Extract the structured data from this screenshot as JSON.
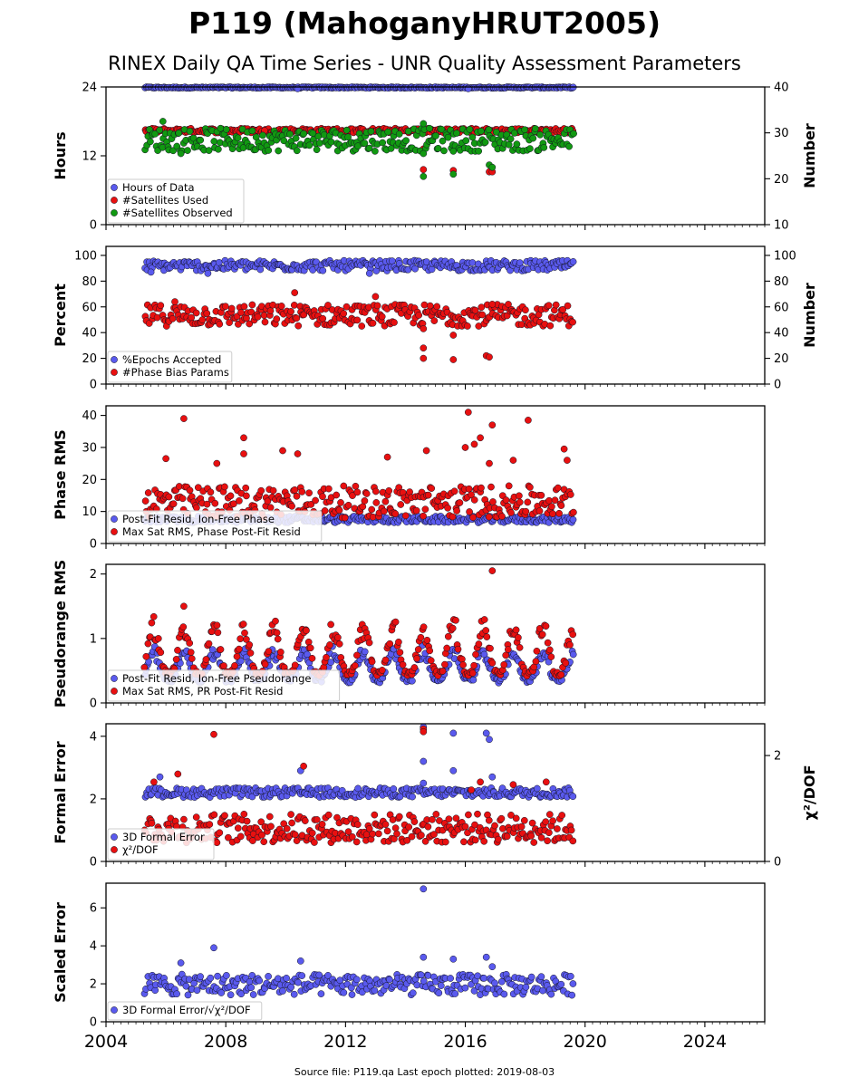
{
  "title": "P119 (MahoganyHRUT2005)",
  "subtitle": "RINEX Daily QA Time Series - UNR Quality Assessment Parameters",
  "footer": "Source file: P119.qa Last epoch plotted: 2019-08-03",
  "colors": {
    "blue": "#5a5aee",
    "red": "#e81010",
    "green": "#119911",
    "edge": "#111122"
  },
  "x_axis": {
    "range": [
      2004,
      2026
    ],
    "ticks": [
      2004,
      2008,
      2012,
      2016,
      2020,
      2024
    ],
    "tick_labels": [
      "2004",
      "2008",
      "2012",
      "2016",
      "2020",
      "2024"
    ]
  },
  "chart_data": [
    {
      "type": "scatter",
      "ylabel": "Hours",
      "ylabel2": "Number",
      "ylim": [
        0,
        24
      ],
      "yticks": [
        0,
        12,
        24
      ],
      "ylim2": [
        10,
        40
      ],
      "yticks2": [
        10,
        20,
        30,
        40
      ],
      "legend_position": "lower-left",
      "series": [
        {
          "name": "Hours of Data",
          "color": "blue",
          "axis": "left",
          "x_range": [
            2005.3,
            2019.6
          ],
          "band": [
            23.8,
            24.0
          ],
          "outliers": [
            [
              2010.4,
              23.7
            ],
            [
              2016.1,
              23.7
            ]
          ]
        },
        {
          "name": "#Satellites Used",
          "color": "red",
          "axis": "right",
          "x_range": [
            2005.3,
            2019.6
          ],
          "band": [
            30,
            31
          ],
          "outliers": [
            [
              2014.6,
              26.5
            ],
            [
              2014.6,
              22.0
            ],
            [
              2015.6,
              21.8
            ],
            [
              2016.8,
              21.5
            ],
            [
              2016.9,
              21.5
            ],
            [
              2009.3,
              30.5
            ]
          ]
        },
        {
          "name": "#Satellites Observed",
          "color": "green",
          "axis": "right",
          "x_range": [
            2005.3,
            2019.6
          ],
          "band": [
            26,
            31
          ],
          "outliers": [
            [
              2005.9,
              32.5
            ],
            [
              2006.5,
              25.5
            ],
            [
              2014.6,
              25.5
            ],
            [
              2014.6,
              20.5
            ],
            [
              2015.6,
              21.0
            ],
            [
              2016.8,
              23.0
            ],
            [
              2016.9,
              22.5
            ],
            [
              2014.6,
              32.0
            ],
            [
              2015.6,
              26.0
            ]
          ]
        }
      ]
    },
    {
      "type": "scatter",
      "ylabel": "Percent",
      "ylabel2": "Number",
      "ylim": [
        0,
        107
      ],
      "yticks": [
        0,
        20,
        40,
        60,
        80,
        100
      ],
      "ylim2": [
        0,
        107
      ],
      "yticks2": [
        0,
        20,
        40,
        60,
        80,
        100
      ],
      "legend_position": "lower-left",
      "series": [
        {
          "name": "%Epochs Accepted",
          "color": "blue",
          "axis": "left",
          "x_range": [
            2005.3,
            2019.6
          ],
          "band": [
            88,
            96
          ],
          "outliers": [
            [
              2005.5,
              87
            ],
            [
              2007.4,
              86
            ],
            [
              2012.8,
              86
            ]
          ]
        },
        {
          "name": "#Phase Bias Params",
          "color": "red",
          "axis": "right",
          "x_range": [
            2005.3,
            2019.6
          ],
          "band": [
            45,
            62
          ],
          "outliers": [
            [
              2006.3,
              64
            ],
            [
              2010.3,
              71
            ],
            [
              2013.0,
              68
            ],
            [
              2014.6,
              43
            ],
            [
              2014.6,
              28
            ],
            [
              2014.6,
              20
            ],
            [
              2015.6,
              38
            ],
            [
              2015.6,
              19
            ],
            [
              2016.7,
              22
            ],
            [
              2016.8,
              21
            ],
            [
              2016.9,
              62
            ]
          ]
        }
      ]
    },
    {
      "type": "scatter",
      "ylabel": "Phase RMS",
      "ylim": [
        0,
        43
      ],
      "yticks": [
        0,
        10,
        20,
        30,
        40
      ],
      "legend_position": "lower-left",
      "series": [
        {
          "name": "Post-Fit Resid, Ion-Free Phase",
          "color": "blue",
          "axis": "left",
          "x_range": [
            2005.3,
            2019.6
          ],
          "band": [
            6.5,
            8.5
          ],
          "outliers": []
        },
        {
          "name": "Max Sat RMS, Phase Post-Fit Resid",
          "color": "red",
          "axis": "left",
          "x_range": [
            2005.3,
            2019.6
          ],
          "band": [
            8,
            18
          ],
          "outliers": [
            [
              2006.6,
              39
            ],
            [
              2006.0,
              26.5
            ],
            [
              2007.7,
              25
            ],
            [
              2008.6,
              33
            ],
            [
              2008.6,
              28
            ],
            [
              2009.9,
              29
            ],
            [
              2010.4,
              28
            ],
            [
              2013.4,
              27
            ],
            [
              2014.7,
              29
            ],
            [
              2016.0,
              30
            ],
            [
              2016.1,
              41
            ],
            [
              2016.3,
              31
            ],
            [
              2016.5,
              33
            ],
            [
              2016.8,
              25
            ],
            [
              2016.9,
              37
            ],
            [
              2017.6,
              26
            ],
            [
              2018.1,
              38.5
            ],
            [
              2019.3,
              29.5
            ],
            [
              2019.4,
              26
            ]
          ]
        }
      ]
    },
    {
      "type": "scatter",
      "ylabel": "Pseudorange RMS",
      "ylim": [
        0,
        2.15
      ],
      "yticks": [
        0,
        1,
        2
      ],
      "legend_position": "lower-left",
      "series": [
        {
          "name": "Post-Fit Resid, Ion-Free Pseudorange",
          "color": "blue",
          "axis": "left",
          "x_range": [
            2005.3,
            2019.6
          ],
          "band": [
            0.35,
            0.9
          ],
          "seasonal": true,
          "outliers": []
        },
        {
          "name": "Max Sat RMS, PR Post-Fit Resid",
          "color": "red",
          "axis": "left",
          "x_range": [
            2005.3,
            2019.6
          ],
          "band": [
            0.45,
            1.35
          ],
          "seasonal": true,
          "outliers": [
            [
              2016.9,
              2.05
            ],
            [
              2006.6,
              1.5
            ]
          ]
        }
      ]
    },
    {
      "type": "scatter",
      "ylabel": "Formal Error",
      "ylabel2": "χ²/DOF",
      "ylim": [
        0,
        4.4
      ],
      "yticks": [
        0,
        2,
        4
      ],
      "ylim2": [
        0,
        2.6
      ],
      "yticks2": [
        0,
        2
      ],
      "legend_position": "lower-left",
      "series": [
        {
          "name": "3D Formal Error",
          "color": "blue",
          "axis": "left",
          "x_range": [
            2005.3,
            2019.6
          ],
          "band": [
            2.05,
            2.35
          ],
          "outliers": [
            [
              2005.8,
              2.7
            ],
            [
              2010.5,
              2.9
            ],
            [
              2014.6,
              3.2
            ],
            [
              2014.6,
              4.3
            ],
            [
              2014.6,
              2.5
            ],
            [
              2015.6,
              4.1
            ],
            [
              2015.6,
              2.9
            ],
            [
              2016.7,
              4.1
            ],
            [
              2016.8,
              3.9
            ],
            [
              2016.9,
              2.7
            ]
          ]
        },
        {
          "name": "χ²/DOF",
          "color": "red",
          "axis": "right",
          "x_range": [
            2005.3,
            2019.6
          ],
          "band": [
            0.35,
            0.9
          ],
          "outliers": [
            [
              2007.6,
              2.4
            ],
            [
              2006.4,
              1.65
            ],
            [
              2010.6,
              1.8
            ],
            [
              2014.6,
              2.5
            ],
            [
              2014.6,
              2.45
            ],
            [
              2016.2,
              1.35
            ],
            [
              2016.5,
              1.5
            ],
            [
              2017.6,
              1.45
            ],
            [
              2018.7,
              1.5
            ],
            [
              2005.6,
              1.5
            ]
          ]
        }
      ]
    },
    {
      "type": "scatter",
      "ylabel": "Scaled Error",
      "ylim": [
        0,
        7.3
      ],
      "yticks": [
        0,
        2,
        4,
        6
      ],
      "legend_position": "lower-left",
      "series": [
        {
          "name": "3D Formal Error/√χ²/DOF",
          "color": "blue",
          "axis": "left",
          "x_range": [
            2005.3,
            2019.6
          ],
          "band": [
            1.4,
            2.5
          ],
          "outliers": [
            [
              2007.6,
              3.9
            ],
            [
              2014.6,
              7.0
            ],
            [
              2014.6,
              3.4
            ],
            [
              2015.6,
              3.3
            ],
            [
              2016.7,
              3.4
            ],
            [
              2010.5,
              3.2
            ],
            [
              2006.5,
              3.1
            ],
            [
              2016.9,
              2.9
            ]
          ]
        }
      ]
    }
  ]
}
